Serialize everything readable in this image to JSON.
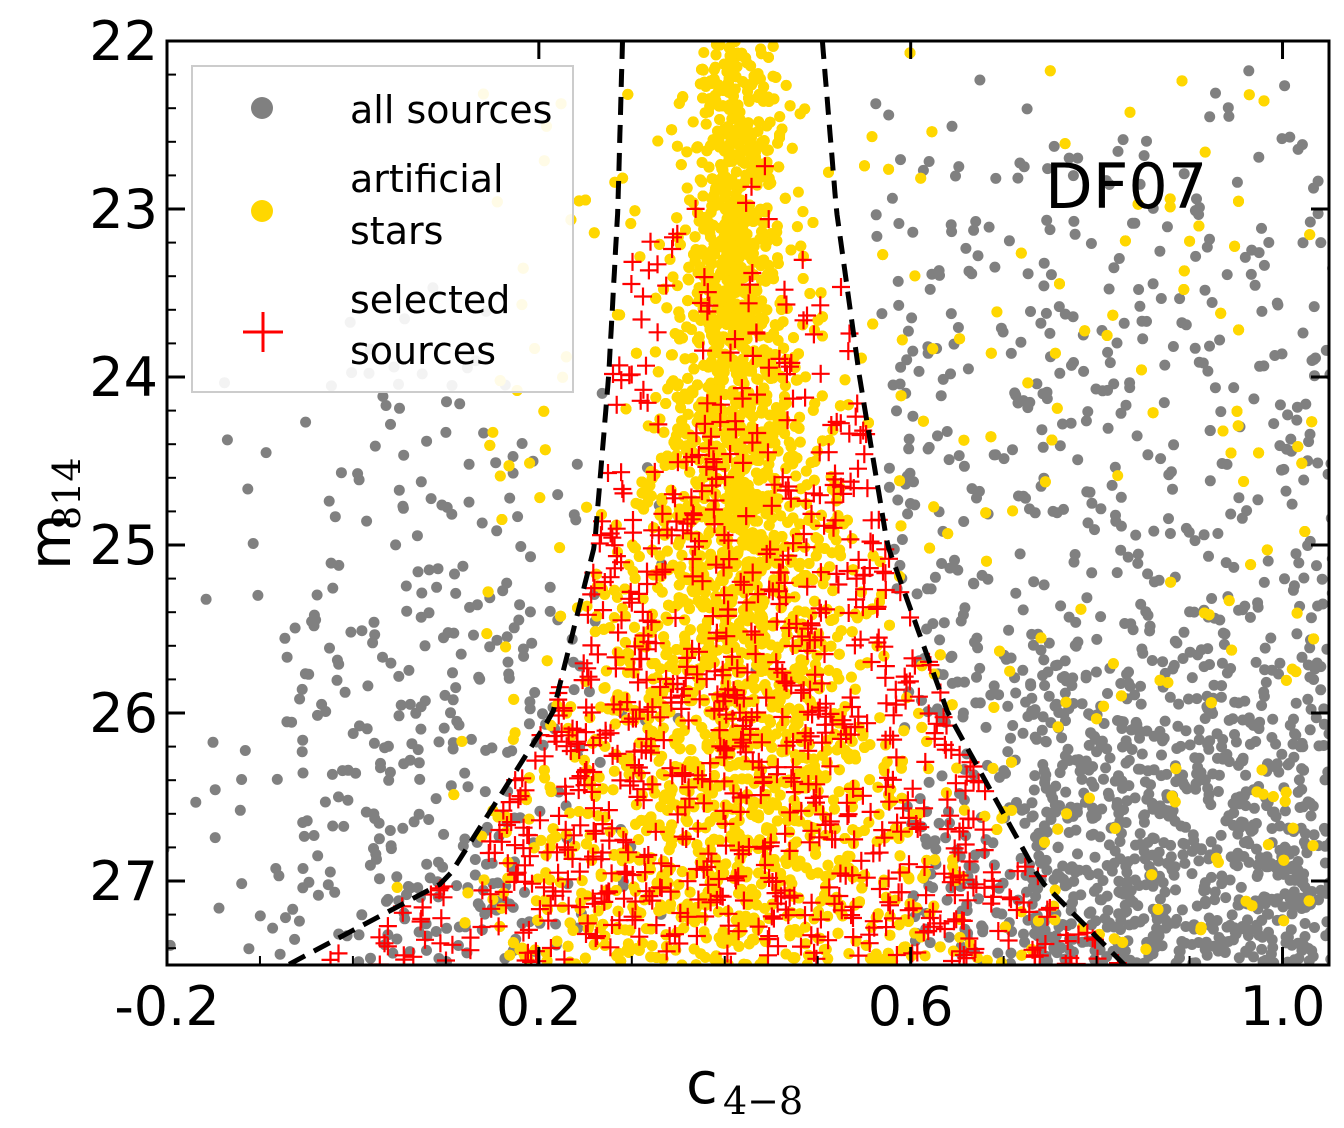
{
  "chart_data": {
    "type": "scatter",
    "title": "",
    "panel_label": "DF07",
    "xlabel": "c",
    "xlabel_sub": "4−8",
    "ylabel": "m",
    "ylabel_sub": "814",
    "xlim": [
      -0.2,
      1.05
    ],
    "ylim": [
      27.5,
      22.0
    ],
    "x_ticks": [
      -0.2,
      0.2,
      0.6,
      1.0
    ],
    "x_tick_labels": [
      "-0.2",
      "0.2",
      "0.6",
      "1.0"
    ],
    "y_ticks": [
      22,
      23,
      24,
      25,
      26,
      27
    ],
    "y_tick_labels": [
      "22",
      "23",
      "24",
      "25",
      "26",
      "27"
    ],
    "legend_position": "upper-left",
    "legend": [
      {
        "label_lines": [
          "all sources"
        ],
        "marker": "dot",
        "color": "#808080"
      },
      {
        "label_lines": [
          "artificial",
          "stars"
        ],
        "marker": "dot",
        "color": "#FFD700"
      },
      {
        "label_lines": [
          "selected",
          "sources"
        ],
        "marker": "plus",
        "color": "#FF0000"
      }
    ],
    "series": [
      {
        "name": "all sources",
        "marker": "dot",
        "color": "#808080",
        "clusters": [
          {
            "x_center": 0.08,
            "x_spread": 0.18,
            "y_min": 23.3,
            "y_max": 27.5,
            "count": 380
          },
          {
            "x_center": 0.88,
            "x_spread": 0.22,
            "y_min": 22.1,
            "y_max": 27.5,
            "count": 950
          },
          {
            "x_center": 0.95,
            "x_spread": 0.12,
            "y_min": 25.5,
            "y_max": 27.5,
            "count": 600
          }
        ]
      },
      {
        "name": "artificial stars",
        "marker": "dot",
        "color": "#FFD700",
        "ridge_center": 0.41,
        "y_range": [
          22.0,
          27.5
        ],
        "count": 6500
      },
      {
        "name": "selected sources",
        "marker": "plus",
        "color": "#FF0000",
        "y_range": [
          22.05,
          27.5
        ],
        "count": 900
      },
      {
        "name": "selection boundary",
        "marker": "dashed-line",
        "color": "#000000",
        "left_curve": [
          [
            0.29,
            22.0
          ],
          [
            0.285,
            23.0
          ],
          [
            0.275,
            24.0
          ],
          [
            0.26,
            25.0
          ],
          [
            0.215,
            26.0
          ],
          [
            0.1,
            27.0
          ],
          [
            -0.07,
            27.5
          ]
        ],
        "right_curve": [
          [
            0.505,
            22.0
          ],
          [
            0.52,
            23.0
          ],
          [
            0.545,
            24.0
          ],
          [
            0.575,
            25.0
          ],
          [
            0.64,
            26.0
          ],
          [
            0.74,
            27.0
          ],
          [
            0.83,
            27.5
          ]
        ]
      }
    ]
  }
}
